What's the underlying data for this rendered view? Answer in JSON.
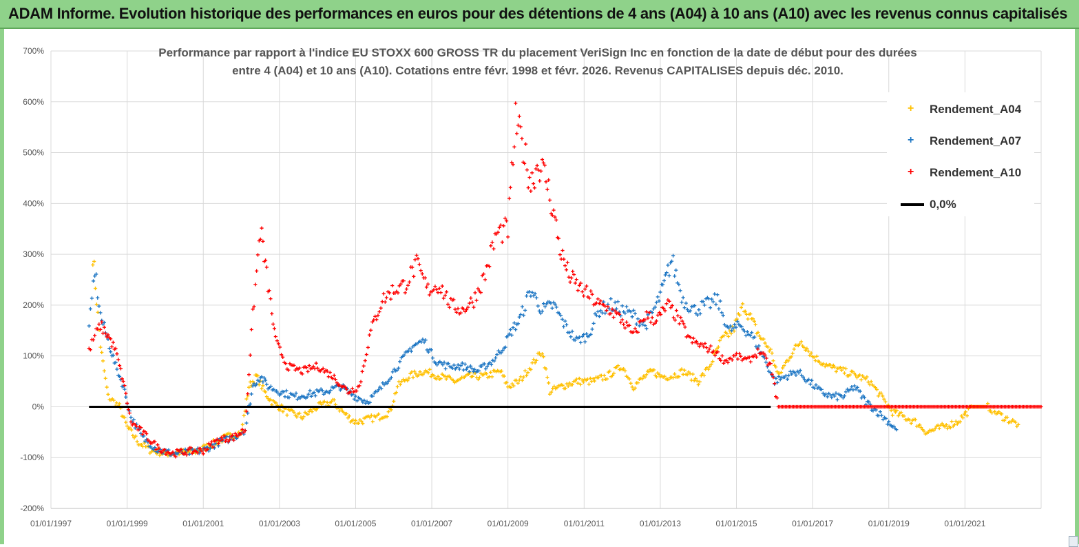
{
  "banner": {
    "title": "ADAM Informe. Evolution historique des performances en euros pour des détentions de 4 ans (A04) à 10 ans (A10) avec les revenus connus capitalisés"
  },
  "colors": {
    "banner_bg": "#8fd28a",
    "a04": "#ffc000",
    "a07": "#1f77c4",
    "a10": "#ff0000",
    "zero": "#000000",
    "grid": "#d9d9d9"
  },
  "chart_data": {
    "type": "scatter",
    "title_line1": "Performance par rapport à l'indice EU STOXX 600 GROSS TR  du placement VeriSign Inc en fonction de la date de début pour des durées",
    "title_line2": "entre 4 (A04) et 10 ans (A10). Cotations entre févr. 1998 et févr. 2026. Revenus CAPITALISES depuis déc. 2010.",
    "xlabel": "",
    "ylabel": "",
    "ylim": [
      -200,
      700
    ],
    "yticks": [
      -200,
      -100,
      0,
      100,
      200,
      300,
      400,
      500,
      600,
      700
    ],
    "ytick_labels": [
      "-200%",
      "-100%",
      "0%",
      "100%",
      "200%",
      "300%",
      "400%",
      "500%",
      "600%",
      "700%"
    ],
    "xlim": [
      1997.0,
      2023.0
    ],
    "xticks": [
      1997,
      1999,
      2001,
      2003,
      2005,
      2007,
      2009,
      2011,
      2013,
      2015,
      2017,
      2019,
      2021
    ],
    "xtick_labels": [
      "01/01/1997",
      "01/01/1999",
      "01/01/2001",
      "01/01/2003",
      "01/01/2005",
      "01/01/2007",
      "01/01/2009",
      "01/01/2011",
      "01/01/2013",
      "01/01/2015",
      "01/01/2017",
      "01/01/2019",
      "01/01/2021"
    ],
    "legend": {
      "position": "top-right",
      "entries": [
        "Rendement_A04",
        "Rendement_A07",
        "Rendement_A10",
        "0,0%"
      ]
    },
    "series": [
      {
        "name": "Rendement_A04",
        "x": [
          1998.1,
          1998.3,
          1998.5,
          1998.8,
          1999.0,
          1999.3,
          1999.6,
          2000.0,
          2000.4,
          2000.8,
          2001.2,
          2001.6,
          2002.0,
          2002.2,
          2002.4,
          2002.6,
          2002.8,
          2003.2,
          2003.6,
          2004.0,
          2004.4,
          2004.8,
          2005.0,
          2005.3,
          2005.6,
          2005.9,
          2006.1,
          2006.4,
          2006.8,
          2007.2,
          2007.6,
          2008.0,
          2008.4,
          2008.8,
          2009.0,
          2009.3,
          2009.6,
          2009.9,
          2010.1,
          2010.4,
          2010.8,
          2011.2,
          2011.6,
          2012.0,
          2012.3,
          2012.6,
          2012.8,
          2013.0,
          2013.3,
          2013.6,
          2014.0,
          2014.3,
          2014.6,
          2014.9,
          2015.2,
          2015.4,
          2015.6,
          2015.9,
          2016.1,
          2016.4,
          2016.7,
          2017.0,
          2017.4,
          2017.8,
          2018.2,
          2018.5,
          2018.8,
          2019.1,
          2019.4,
          2019.7,
          2020.0,
          2020.4,
          2020.8,
          2021.2,
          2021.6,
          2022.0,
          2022.4
        ],
        "y": [
          300,
          120,
          20,
          0,
          -40,
          -70,
          -85,
          -92,
          -90,
          -88,
          -75,
          -60,
          -50,
          40,
          60,
          30,
          10,
          -10,
          -20,
          0,
          10,
          -20,
          -30,
          -25,
          -20,
          -10,
          40,
          60,
          70,
          60,
          50,
          60,
          60,
          70,
          40,
          50,
          80,
          110,
          30,
          40,
          50,
          50,
          60,
          80,
          40,
          60,
          70,
          60,
          60,
          70,
          50,
          80,
          130,
          150,
          200,
          170,
          140,
          110,
          60,
          100,
          130,
          100,
          80,
          70,
          60,
          50,
          20,
          -10,
          -20,
          -30,
          -50,
          -40,
          -30,
          0,
          0,
          -20,
          -35
        ]
      },
      {
        "name": "Rendement_A07",
        "x": [
          1998.0,
          1998.15,
          1998.3,
          1998.5,
          1998.7,
          1998.9,
          1999.1,
          1999.4,
          1999.8,
          2000.2,
          2000.6,
          2001.0,
          2001.4,
          2001.8,
          2002.1,
          2002.3,
          2002.5,
          2002.7,
          2003.0,
          2003.4,
          2003.8,
          2004.2,
          2004.6,
          2005.0,
          2005.3,
          2005.6,
          2005.9,
          2006.2,
          2006.5,
          2006.8,
          2007.1,
          2007.4,
          2007.8,
          2008.2,
          2008.6,
          2008.9,
          2009.1,
          2009.3,
          2009.6,
          2009.9,
          2010.2,
          2010.5,
          2010.8,
          2011.1,
          2011.4,
          2011.7,
          2012.0,
          2012.3,
          2012.6,
          2012.9,
          2013.1,
          2013.3,
          2013.6,
          2013.9,
          2014.2,
          2014.5,
          2014.8,
          2015.1,
          2015.4,
          2015.7,
          2016.0,
          2016.3,
          2016.6,
          2016.9,
          2017.2,
          2017.5,
          2017.8,
          2018.1,
          2018.4,
          2018.7,
          2019.0,
          2019.2
        ],
        "y": [
          150,
          270,
          180,
          130,
          80,
          40,
          -20,
          -60,
          -85,
          -92,
          -90,
          -86,
          -70,
          -60,
          -45,
          40,
          60,
          40,
          30,
          20,
          25,
          30,
          40,
          20,
          10,
          30,
          60,
          90,
          120,
          130,
          90,
          80,
          80,
          70,
          90,
          120,
          150,
          170,
          230,
          190,
          200,
          160,
          130,
          140,
          190,
          200,
          190,
          180,
          160,
          200,
          240,
          290,
          210,
          190,
          200,
          210,
          150,
          160,
          140,
          100,
          50,
          60,
          70,
          50,
          30,
          20,
          20,
          40,
          10,
          -10,
          -30,
          -45
        ]
      },
      {
        "name": "Rendement_A10",
        "x": [
          1998.0,
          1998.15,
          1998.3,
          1998.5,
          1998.7,
          1998.9,
          1999.1,
          1999.4,
          1999.8,
          2000.2,
          2000.6,
          2001.0,
          2001.4,
          2001.8,
          2002.1,
          2002.3,
          2002.5,
          2002.7,
          2002.9,
          2003.2,
          2003.6,
          2004.0,
          2004.4,
          2004.8,
          2005.1,
          2005.4,
          2005.7,
          2006.0,
          2006.3,
          2006.6,
          2006.9,
          2007.2,
          2007.5,
          2007.8,
          2008.1,
          2008.4,
          2008.7,
          2009.0,
          2009.2,
          2009.4,
          2009.6,
          2009.8,
          2010.0,
          2010.2,
          2010.4,
          2010.6,
          2010.8,
          2011.1,
          2011.4,
          2011.7,
          2012.0,
          2012.3,
          2012.6,
          2012.9,
          2013.2,
          2013.5,
          2013.8,
          2014.1,
          2014.4,
          2014.7,
          2015.0,
          2015.3,
          2015.6,
          2015.9,
          2016.1,
          2016.5,
          2017.0,
          2017.5,
          2018.0,
          2018.5,
          2019.0,
          2019.5,
          2020.0,
          2020.5,
          2021.0,
          2021.5,
          2022.0,
          2022.5,
          2023.0
        ],
        "y": [
          110,
          140,
          160,
          140,
          110,
          50,
          -30,
          -50,
          -80,
          -92,
          -88,
          -86,
          -65,
          -60,
          -45,
          180,
          350,
          240,
          130,
          80,
          70,
          80,
          60,
          30,
          40,
          150,
          210,
          230,
          240,
          280,
          230,
          240,
          200,
          190,
          210,
          260,
          340,
          350,
          560,
          510,
          440,
          480,
          450,
          380,
          300,
          260,
          240,
          220,
          200,
          190,
          170,
          140,
          180,
          170,
          200,
          170,
          130,
          120,
          110,
          90,
          100,
          90,
          110,
          80,
          0,
          0,
          0,
          0,
          0,
          0,
          0,
          0,
          0,
          0,
          0,
          0,
          0,
          0,
          0
        ]
      },
      {
        "name": "0,0%",
        "x": [
          1998.0,
          2015.9
        ],
        "y": [
          0,
          0
        ]
      }
    ]
  }
}
